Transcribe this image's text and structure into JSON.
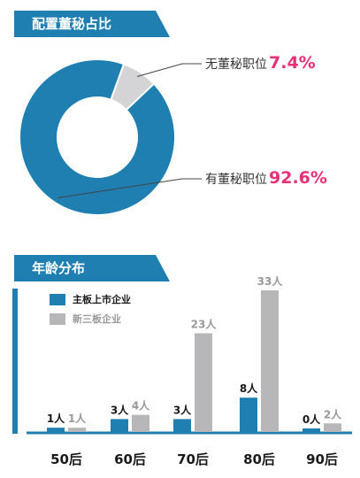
{
  "colors": {
    "blue": "#1f7fb1",
    "gray": "#b7b7b9",
    "banner": "#1f7fb1",
    "pink": "#e8307a"
  },
  "chart_data": [
    {
      "type": "pie",
      "title": "配置董秘占比",
      "slices": [
        {
          "label": "有董秘职位",
          "value": 92.6,
          "value_text": "92.6%",
          "color": "#1f7fb1"
        },
        {
          "label": "无董秘职位",
          "value": 7.4,
          "value_text": "7.4%",
          "color": "#d4d4d6"
        }
      ]
    },
    {
      "type": "bar",
      "title": "年龄分布",
      "categories": [
        "50后",
        "60后",
        "70后",
        "80后",
        "90后"
      ],
      "series": [
        {
          "name": "主板上市企业",
          "color": "#1f7fb1",
          "values": [
            1,
            3,
            3,
            8,
            0
          ],
          "labels": [
            "1人",
            "3人",
            "3人",
            "8人",
            "0人"
          ]
        },
        {
          "name": "新三板企业",
          "color": "#b7b7b9",
          "values": [
            1,
            4,
            23,
            33,
            2
          ],
          "labels": [
            "1人",
            "4人",
            "23人",
            "33人",
            "2人"
          ]
        }
      ],
      "ylim": [
        0,
        33
      ]
    }
  ]
}
